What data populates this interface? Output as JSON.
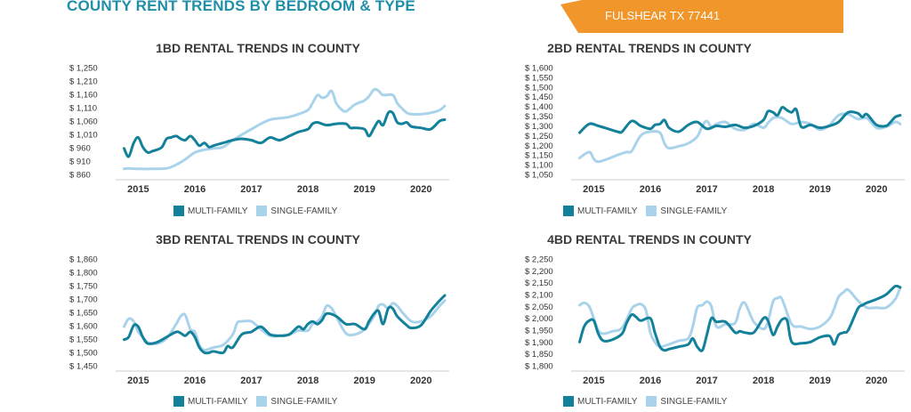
{
  "page": {
    "title": "COUNTY RENT TRENDS BY BEDROOM & TYPE",
    "location": "FULSHEAR TX 77441"
  },
  "colors": {
    "title": "#1f8fa8",
    "banner": "#f0962a",
    "multi_family": "#13819a",
    "single_family": "#a9d3ea"
  },
  "chart_data": [
    {
      "type": "line",
      "title": "1BD RENTAL TRENDS IN COUNTY",
      "y_ticks": [
        "$ 1,250",
        "$ 1,210",
        "$ 1,160",
        "$ 1,110",
        "$ 1,060",
        "$ 1,010",
        "$ 960",
        "$ 910",
        "$ 860"
      ],
      "ylim": [
        860,
        1250
      ],
      "x_ticks": [
        "2015",
        "2016",
        "2017",
        "2018",
        "2019",
        "2020"
      ],
      "legend": [
        "MULTI-FAMILY",
        "SINGLE-FAMILY"
      ],
      "series": [
        {
          "name": "MULTI-FAMILY",
          "x": [
            2014.75,
            2014.83,
            2014.92,
            2015.0,
            2015.08,
            2015.17,
            2015.25,
            2015.33,
            2015.42,
            2015.5,
            2015.58,
            2015.67,
            2015.75,
            2015.83,
            2015.92,
            2016.0,
            2016.08,
            2016.17,
            2016.25,
            2016.33,
            2016.5,
            2016.67,
            2016.83,
            2017.0,
            2017.17,
            2017.33,
            2017.5,
            2017.67,
            2017.83,
            2018.0,
            2018.08,
            2018.17,
            2018.33,
            2018.5,
            2018.67,
            2018.75,
            2018.83,
            2019.0,
            2019.08,
            2019.17,
            2019.25,
            2019.33,
            2019.42,
            2019.5,
            2019.58,
            2019.67,
            2019.75,
            2019.83,
            2020.0,
            2020.17,
            2020.33,
            2020.42
          ],
          "y": [
            955,
            925,
            975,
            995,
            960,
            940,
            945,
            950,
            960,
            990,
            995,
            1000,
            990,
            985,
            1000,
            985,
            965,
            975,
            960,
            965,
            975,
            985,
            990,
            985,
            975,
            995,
            985,
            1000,
            1015,
            1025,
            1045,
            1050,
            1040,
            1045,
            1045,
            1030,
            1030,
            1025,
            1000,
            1030,
            1055,
            1040,
            1085,
            1085,
            1050,
            1045,
            1050,
            1035,
            1030,
            1025,
            1055,
            1060
          ]
        },
        {
          "name": "SINGLE-FAMILY",
          "x": [
            2014.75,
            2014.83,
            2015.0,
            2015.25,
            2015.5,
            2015.67,
            2015.83,
            2016.0,
            2016.17,
            2016.33,
            2016.5,
            2016.67,
            2016.83,
            2017.0,
            2017.17,
            2017.33,
            2017.5,
            2017.67,
            2017.83,
            2018.0,
            2018.08,
            2018.17,
            2018.25,
            2018.33,
            2018.42,
            2018.5,
            2018.58,
            2018.67,
            2018.83,
            2019.0,
            2019.08,
            2019.17,
            2019.25,
            2019.33,
            2019.5,
            2019.58,
            2019.67,
            2019.75,
            2019.83,
            2020.0,
            2020.17,
            2020.33,
            2020.42
          ],
          "y": [
            880,
            882,
            880,
            880,
            882,
            895,
            915,
            940,
            950,
            955,
            960,
            985,
            1005,
            1025,
            1045,
            1060,
            1065,
            1070,
            1080,
            1095,
            1120,
            1150,
            1140,
            1145,
            1165,
            1120,
            1100,
            1090,
            1115,
            1130,
            1145,
            1170,
            1165,
            1150,
            1150,
            1120,
            1100,
            1085,
            1080,
            1080,
            1085,
            1095,
            1110
          ]
        }
      ]
    },
    {
      "type": "line",
      "title": "2BD RENTAL TRENDS IN COUNTY",
      "y_ticks": [
        "$ 1,600",
        "$ 1,550",
        "$ 1,500",
        "$ 1,450",
        "$ 1,400",
        "$ 1,350",
        "$ 1,300",
        "$ 1,250",
        "$ 1,200",
        "$ 1,150",
        "$ 1,100",
        "$ 1,050"
      ],
      "ylim": [
        1050,
        1600
      ],
      "x_ticks": [
        "2015",
        "2016",
        "2017",
        "2018",
        "2019",
        "2020"
      ],
      "legend": [
        "MULTI-FAMILY",
        "SINGLE-FAMILY"
      ],
      "series": [
        {
          "name": "MULTI-FAMILY",
          "x": [
            2014.75,
            2014.92,
            2015.08,
            2015.25,
            2015.42,
            2015.5,
            2015.67,
            2015.83,
            2016.0,
            2016.08,
            2016.17,
            2016.25,
            2016.33,
            2016.5,
            2016.67,
            2016.83,
            2017.0,
            2017.17,
            2017.33,
            2017.5,
            2017.67,
            2017.83,
            2018.0,
            2018.08,
            2018.17,
            2018.25,
            2018.33,
            2018.42,
            2018.5,
            2018.58,
            2018.67,
            2018.83,
            2019.0,
            2019.17,
            2019.33,
            2019.5,
            2019.67,
            2019.75,
            2019.83,
            2020.0,
            2020.17,
            2020.25,
            2020.33,
            2020.42
          ],
          "y": [
            1265,
            1310,
            1300,
            1285,
            1270,
            1270,
            1325,
            1300,
            1285,
            1305,
            1310,
            1330,
            1290,
            1270,
            1305,
            1320,
            1285,
            1300,
            1295,
            1305,
            1290,
            1300,
            1330,
            1375,
            1370,
            1355,
            1395,
            1380,
            1370,
            1385,
            1295,
            1305,
            1290,
            1300,
            1320,
            1370,
            1365,
            1345,
            1360,
            1305,
            1300,
            1320,
            1345,
            1355
          ]
        },
        {
          "name": "SINGLE-FAMILY",
          "x": [
            2014.75,
            2014.92,
            2015.0,
            2015.08,
            2015.25,
            2015.42,
            2015.58,
            2015.67,
            2015.83,
            2016.0,
            2016.17,
            2016.25,
            2016.33,
            2016.5,
            2016.67,
            2016.83,
            2016.92,
            2017.0,
            2017.08,
            2017.17,
            2017.33,
            2017.5,
            2017.67,
            2017.83,
            2018.0,
            2018.08,
            2018.17,
            2018.25,
            2018.33,
            2018.5,
            2018.67,
            2018.83,
            2019.0,
            2019.17,
            2019.33,
            2019.5,
            2019.67,
            2019.83,
            2020.0,
            2020.17,
            2020.33,
            2020.42
          ],
          "y": [
            1135,
            1165,
            1130,
            1115,
            1130,
            1150,
            1165,
            1170,
            1250,
            1270,
            1265,
            1210,
            1185,
            1195,
            1210,
            1245,
            1300,
            1325,
            1295,
            1310,
            1320,
            1285,
            1280,
            1310,
            1290,
            1315,
            1340,
            1345,
            1340,
            1310,
            1320,
            1310,
            1280,
            1305,
            1355,
            1360,
            1335,
            1340,
            1290,
            1295,
            1320,
            1310
          ]
        }
      ]
    },
    {
      "type": "line",
      "title": "3BD RENTAL TRENDS IN COUNTY",
      "y_ticks": [
        "$ 1,860",
        "$ 1,800",
        "$ 1,750",
        "$ 1,700",
        "$ 1,650",
        "$ 1,600",
        "$ 1,550",
        "$ 1,500",
        "$ 1,450"
      ],
      "ylim": [
        1450,
        1860
      ],
      "x_ticks": [
        "2015",
        "2016",
        "2017",
        "2018",
        "2019",
        "2020"
      ],
      "legend": [
        "MULTI-FAMILY",
        "SINGLE-FAMILY"
      ],
      "series": [
        {
          "name": "MULTI-FAMILY",
          "x": [
            2014.75,
            2014.83,
            2014.92,
            2015.0,
            2015.08,
            2015.17,
            2015.33,
            2015.5,
            2015.67,
            2015.75,
            2015.83,
            2015.92,
            2016.0,
            2016.08,
            2016.17,
            2016.25,
            2016.33,
            2016.5,
            2016.58,
            2016.67,
            2016.83,
            2017.0,
            2017.17,
            2017.33,
            2017.5,
            2017.67,
            2017.83,
            2017.92,
            2018.0,
            2018.08,
            2018.17,
            2018.25,
            2018.33,
            2018.5,
            2018.67,
            2018.83,
            2019.0,
            2019.08,
            2019.17,
            2019.25,
            2019.33,
            2019.42,
            2019.5,
            2019.58,
            2019.75,
            2019.83,
            2020.0,
            2020.17,
            2020.33,
            2020.42
          ],
          "y": [
            1550,
            1560,
            1605,
            1600,
            1560,
            1535,
            1540,
            1560,
            1580,
            1575,
            1565,
            1580,
            1560,
            1520,
            1500,
            1500,
            1505,
            1500,
            1525,
            1520,
            1570,
            1580,
            1600,
            1570,
            1565,
            1570,
            1600,
            1590,
            1610,
            1620,
            1610,
            1625,
            1650,
            1640,
            1610,
            1610,
            1590,
            1620,
            1650,
            1660,
            1610,
            1670,
            1670,
            1640,
            1605,
            1595,
            1605,
            1660,
            1700,
            1720
          ]
        },
        {
          "name": "SINGLE-FAMILY",
          "x": [
            2014.75,
            2014.83,
            2014.92,
            2015.0,
            2015.08,
            2015.17,
            2015.33,
            2015.5,
            2015.67,
            2015.75,
            2015.83,
            2015.92,
            2016.0,
            2016.08,
            2016.17,
            2016.33,
            2016.5,
            2016.67,
            2016.75,
            2016.83,
            2017.0,
            2017.17,
            2017.33,
            2017.5,
            2017.67,
            2017.83,
            2018.0,
            2018.08,
            2018.17,
            2018.25,
            2018.33,
            2018.42,
            2018.5,
            2018.67,
            2018.83,
            2019.0,
            2019.17,
            2019.25,
            2019.33,
            2019.42,
            2019.5,
            2019.58,
            2019.67,
            2019.83,
            2020.0,
            2020.17,
            2020.33,
            2020.42
          ],
          "y": [
            1600,
            1630,
            1620,
            1580,
            1560,
            1540,
            1535,
            1555,
            1610,
            1640,
            1645,
            1590,
            1580,
            1530,
            1510,
            1520,
            1530,
            1570,
            1615,
            1620,
            1620,
            1590,
            1565,
            1565,
            1570,
            1585,
            1585,
            1610,
            1620,
            1640,
            1680,
            1670,
            1640,
            1575,
            1570,
            1590,
            1640,
            1680,
            1685,
            1670,
            1690,
            1680,
            1655,
            1620,
            1620,
            1640,
            1680,
            1700
          ]
        }
      ]
    },
    {
      "type": "line",
      "title": "4BD RENTAL TRENDS IN COUNTY",
      "y_ticks": [
        "$ 2,250",
        "$ 2,200",
        "$ 2,150",
        "$ 2,100",
        "$ 2,050",
        "$ 2,000",
        "$ 1,950",
        "$ 1,900",
        "$ 1,850",
        "$ 1,800"
      ],
      "ylim": [
        1800,
        2250
      ],
      "x_ticks": [
        "2015",
        "2016",
        "2017",
        "2018",
        "2019",
        "2020"
      ],
      "legend": [
        "MULTI-FAMILY",
        "SINGLE-FAMILY"
      ],
      "series": [
        {
          "name": "MULTI-FAMILY",
          "x": [
            2014.75,
            2014.83,
            2014.92,
            2015.0,
            2015.08,
            2015.17,
            2015.33,
            2015.5,
            2015.58,
            2015.67,
            2015.75,
            2015.83,
            2016.0,
            2016.08,
            2016.17,
            2016.25,
            2016.33,
            2016.5,
            2016.67,
            2016.75,
            2016.83,
            2016.92,
            2017.0,
            2017.08,
            2017.17,
            2017.33,
            2017.5,
            2017.58,
            2017.67,
            2017.83,
            2018.0,
            2018.08,
            2018.17,
            2018.25,
            2018.33,
            2018.42,
            2018.5,
            2018.67,
            2018.83,
            2019.0,
            2019.17,
            2019.25,
            2019.33,
            2019.42,
            2019.5,
            2019.67,
            2019.75,
            2019.83,
            2020.0,
            2020.17,
            2020.33,
            2020.42
          ],
          "y": [
            1900,
            1965,
            1990,
            1990,
            1935,
            1905,
            1910,
            1935,
            1980,
            2015,
            2005,
            1990,
            2000,
            1940,
            1880,
            1865,
            1870,
            1880,
            1890,
            1915,
            1880,
            1865,
            1930,
            2000,
            1985,
            1985,
            1940,
            1945,
            1940,
            1940,
            2000,
            1990,
            1930,
            1965,
            1995,
            1990,
            1900,
            1895,
            1900,
            1920,
            1925,
            1890,
            1930,
            1940,
            1950,
            2040,
            2055,
            2065,
            2080,
            2100,
            2135,
            2130
          ]
        },
        {
          "name": "SINGLE-FAMILY",
          "x": [
            2014.75,
            2014.83,
            2014.92,
            2015.0,
            2015.08,
            2015.17,
            2015.33,
            2015.5,
            2015.67,
            2015.75,
            2015.83,
            2015.92,
            2016.0,
            2016.08,
            2016.17,
            2016.33,
            2016.5,
            2016.67,
            2016.75,
            2016.83,
            2016.92,
            2017.0,
            2017.08,
            2017.17,
            2017.33,
            2017.5,
            2017.58,
            2017.67,
            2017.83,
            2018.0,
            2018.08,
            2018.17,
            2018.25,
            2018.33,
            2018.5,
            2018.67,
            2018.83,
            2019.0,
            2019.17,
            2019.25,
            2019.33,
            2019.42,
            2019.5,
            2019.67,
            2019.83,
            2020.0,
            2020.17,
            2020.33,
            2020.42
          ],
          "y": [
            2055,
            2065,
            2050,
            2000,
            1950,
            1935,
            1945,
            1960,
            2040,
            2055,
            2060,
            2035,
            1940,
            1900,
            1880,
            1890,
            1905,
            1915,
            1965,
            2045,
            2055,
            2070,
            2050,
            1965,
            1975,
            1980,
            2040,
            2065,
            1985,
            1955,
            1985,
            2070,
            2085,
            2080,
            1975,
            1965,
            1955,
            1965,
            2000,
            2040,
            2090,
            2110,
            2120,
            2075,
            2045,
            2045,
            2045,
            2080,
            2130
          ]
        }
      ]
    }
  ]
}
